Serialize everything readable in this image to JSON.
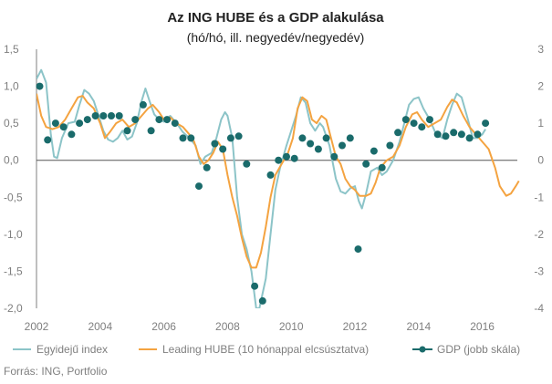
{
  "chart_data": {
    "type": "line",
    "title": "Az ING HUBE és a GDP alakulása",
    "subtitle": "(hó/hó, ill. negyedév/negyedév)",
    "source": "Forrás: ING, Portfolio",
    "x_ticks": [
      "2002",
      "2004",
      "2006",
      "2008",
      "2010",
      "2012",
      "2014",
      "2016"
    ],
    "y_left_ticks": [
      "1,5",
      "1,0",
      "0,5",
      "0,0",
      "-0,5",
      "-1,0",
      "-1,5",
      "-2,0"
    ],
    "y_right_ticks": [
      "3",
      "2",
      "1",
      "0",
      "-1",
      "-2",
      "-3",
      "-4"
    ],
    "ylim_left": [
      -2.0,
      1.5
    ],
    "ylim_right": [
      -4,
      3
    ],
    "xlim": [
      2002.0,
      2017.1
    ],
    "legend_position": "bottom",
    "colors": {
      "egyideju": "#8cc4c8",
      "leading": "#f4a340",
      "gdp": "#1a6b6b",
      "axis": "#7f7f7f",
      "zero": "#555555"
    },
    "series": [
      {
        "name": "Egyidejű index",
        "axis": "left",
        "points": [
          [
            2002.0,
            1.1
          ],
          [
            2002.15,
            1.22
          ],
          [
            2002.3,
            1.05
          ],
          [
            2002.45,
            0.35
          ],
          [
            2002.55,
            0.05
          ],
          [
            2002.65,
            0.03
          ],
          [
            2002.8,
            0.3
          ],
          [
            2003.0,
            0.5
          ],
          [
            2003.2,
            0.52
          ],
          [
            2003.35,
            0.75
          ],
          [
            2003.5,
            0.95
          ],
          [
            2003.65,
            0.9
          ],
          [
            2003.8,
            0.8
          ],
          [
            2003.95,
            0.6
          ],
          [
            2004.1,
            0.4
          ],
          [
            2004.25,
            0.28
          ],
          [
            2004.4,
            0.25
          ],
          [
            2004.55,
            0.3
          ],
          [
            2004.7,
            0.4
          ],
          [
            2004.85,
            0.28
          ],
          [
            2005.0,
            0.32
          ],
          [
            2005.15,
            0.5
          ],
          [
            2005.3,
            0.8
          ],
          [
            2005.42,
            0.97
          ],
          [
            2005.55,
            0.8
          ],
          [
            2005.7,
            0.62
          ],
          [
            2005.85,
            0.55
          ],
          [
            2006.0,
            0.52
          ],
          [
            2006.2,
            0.6
          ],
          [
            2006.4,
            0.5
          ],
          [
            2006.6,
            0.38
          ],
          [
            2006.8,
            0.3
          ],
          [
            2007.0,
            0.2
          ],
          [
            2007.15,
            -0.05
          ],
          [
            2007.3,
            0.05
          ],
          [
            2007.5,
            0.1
          ],
          [
            2007.65,
            0.3
          ],
          [
            2007.8,
            0.55
          ],
          [
            2007.92,
            0.65
          ],
          [
            2008.0,
            0.6
          ],
          [
            2008.15,
            0.3
          ],
          [
            2008.3,
            -0.5
          ],
          [
            2008.45,
            -1.0
          ],
          [
            2008.6,
            -1.2
          ],
          [
            2008.75,
            -1.5
          ],
          [
            2008.9,
            -2.0
          ],
          [
            2009.0,
            -2.0
          ],
          [
            2009.2,
            -1.6
          ],
          [
            2009.35,
            -1.0
          ],
          [
            2009.5,
            -0.4
          ],
          [
            2009.65,
            -0.1
          ],
          [
            2009.85,
            0.2
          ],
          [
            2010.0,
            0.4
          ],
          [
            2010.15,
            0.6
          ],
          [
            2010.3,
            0.85
          ],
          [
            2010.45,
            0.78
          ],
          [
            2010.6,
            0.5
          ],
          [
            2010.75,
            0.4
          ],
          [
            2010.9,
            0.5
          ],
          [
            2011.0,
            0.45
          ],
          [
            2011.2,
            0.2
          ],
          [
            2011.4,
            -0.25
          ],
          [
            2011.55,
            -0.42
          ],
          [
            2011.7,
            -0.45
          ],
          [
            2011.85,
            -0.38
          ],
          [
            2012.0,
            -0.35
          ],
          [
            2012.12,
            -0.55
          ],
          [
            2012.22,
            -0.65
          ],
          [
            2012.35,
            -0.45
          ],
          [
            2012.5,
            -0.15
          ],
          [
            2012.7,
            -0.1
          ],
          [
            2012.85,
            -0.2
          ],
          [
            2013.0,
            -0.15
          ],
          [
            2013.2,
            0.0
          ],
          [
            2013.4,
            0.25
          ],
          [
            2013.55,
            0.5
          ],
          [
            2013.7,
            0.75
          ],
          [
            2013.85,
            0.83
          ],
          [
            2014.0,
            0.85
          ],
          [
            2014.15,
            0.7
          ],
          [
            2014.35,
            0.55
          ],
          [
            2014.55,
            0.35
          ],
          [
            2014.75,
            0.3
          ],
          [
            2014.9,
            0.55
          ],
          [
            2015.05,
            0.75
          ],
          [
            2015.2,
            0.9
          ],
          [
            2015.35,
            0.85
          ],
          [
            2015.55,
            0.55
          ],
          [
            2015.7,
            0.3
          ],
          [
            2015.85,
            0.3
          ],
          [
            2016.0,
            0.35
          ],
          [
            2016.1,
            0.42
          ]
        ]
      },
      {
        "name": "Leading HUBE (10 hónappal elcsúsztatva)",
        "axis": "left",
        "points": [
          [
            2002.0,
            0.9
          ],
          [
            2002.15,
            0.6
          ],
          [
            2002.3,
            0.45
          ],
          [
            2002.5,
            0.42
          ],
          [
            2002.7,
            0.45
          ],
          [
            2002.9,
            0.55
          ],
          [
            2003.1,
            0.7
          ],
          [
            2003.3,
            0.85
          ],
          [
            2003.45,
            0.87
          ],
          [
            2003.6,
            0.78
          ],
          [
            2003.8,
            0.7
          ],
          [
            2004.0,
            0.5
          ],
          [
            2004.15,
            0.3
          ],
          [
            2004.3,
            0.38
          ],
          [
            2004.5,
            0.5
          ],
          [
            2004.7,
            0.55
          ],
          [
            2004.9,
            0.45
          ],
          [
            2005.1,
            0.5
          ],
          [
            2005.3,
            0.6
          ],
          [
            2005.5,
            0.7
          ],
          [
            2005.65,
            0.75
          ],
          [
            2005.85,
            0.65
          ],
          [
            2006.0,
            0.55
          ],
          [
            2006.2,
            0.58
          ],
          [
            2006.4,
            0.5
          ],
          [
            2006.6,
            0.45
          ],
          [
            2006.8,
            0.35
          ],
          [
            2006.95,
            0.25
          ],
          [
            2007.1,
            0.05
          ],
          [
            2007.25,
            -0.05
          ],
          [
            2007.4,
            0.0
          ],
          [
            2007.55,
            0.1
          ],
          [
            2007.7,
            0.25
          ],
          [
            2007.85,
            0.15
          ],
          [
            2008.0,
            -0.2
          ],
          [
            2008.15,
            -0.5
          ],
          [
            2008.3,
            -0.75
          ],
          [
            2008.45,
            -1.05
          ],
          [
            2008.6,
            -1.3
          ],
          [
            2008.75,
            -1.45
          ],
          [
            2008.9,
            -1.45
          ],
          [
            2009.05,
            -1.25
          ],
          [
            2009.2,
            -0.9
          ],
          [
            2009.35,
            -0.5
          ],
          [
            2009.5,
            -0.2
          ],
          [
            2009.7,
            -0.05
          ],
          [
            2009.9,
            0.1
          ],
          [
            2010.05,
            0.3
          ],
          [
            2010.2,
            0.7
          ],
          [
            2010.35,
            0.85
          ],
          [
            2010.5,
            0.8
          ],
          [
            2010.65,
            0.55
          ],
          [
            2010.8,
            0.5
          ],
          [
            2010.95,
            0.6
          ],
          [
            2011.1,
            0.55
          ],
          [
            2011.25,
            0.3
          ],
          [
            2011.4,
            0.05
          ],
          [
            2011.55,
            -0.05
          ],
          [
            2011.7,
            -0.25
          ],
          [
            2011.85,
            -0.35
          ],
          [
            2012.0,
            -0.4
          ],
          [
            2012.15,
            -0.48
          ],
          [
            2012.35,
            -0.48
          ],
          [
            2012.5,
            -0.45
          ],
          [
            2012.65,
            -0.3
          ],
          [
            2012.8,
            -0.1
          ],
          [
            2013.0,
            0.0
          ],
          [
            2013.2,
            0.05
          ],
          [
            2013.4,
            0.2
          ],
          [
            2013.6,
            0.45
          ],
          [
            2013.8,
            0.62
          ],
          [
            2013.95,
            0.65
          ],
          [
            2014.1,
            0.55
          ],
          [
            2014.3,
            0.45
          ],
          [
            2014.5,
            0.5
          ],
          [
            2014.7,
            0.55
          ],
          [
            2014.9,
            0.72
          ],
          [
            2015.05,
            0.82
          ],
          [
            2015.2,
            0.78
          ],
          [
            2015.4,
            0.6
          ],
          [
            2015.6,
            0.45
          ],
          [
            2015.8,
            0.35
          ],
          [
            2016.0,
            0.25
          ],
          [
            2016.2,
            0.15
          ],
          [
            2016.4,
            -0.1
          ],
          [
            2016.55,
            -0.35
          ],
          [
            2016.75,
            -0.48
          ],
          [
            2016.9,
            -0.45
          ],
          [
            2017.05,
            -0.35
          ],
          [
            2017.15,
            -0.28
          ]
        ]
      },
      {
        "name": "GDP (jobb skála)",
        "axis": "right",
        "points": [
          [
            2002.1,
            2.0
          ],
          [
            2002.35,
            0.55
          ],
          [
            2002.6,
            1.0
          ],
          [
            2002.85,
            0.9
          ],
          [
            2003.1,
            0.7
          ],
          [
            2003.35,
            1.0
          ],
          [
            2003.6,
            1.1
          ],
          [
            2003.85,
            1.2
          ],
          [
            2004.1,
            1.2
          ],
          [
            2004.35,
            1.2
          ],
          [
            2004.6,
            1.2
          ],
          [
            2004.85,
            0.8
          ],
          [
            2005.1,
            1.1
          ],
          [
            2005.35,
            1.5
          ],
          [
            2005.6,
            0.8
          ],
          [
            2005.85,
            1.1
          ],
          [
            2006.1,
            1.1
          ],
          [
            2006.35,
            1.0
          ],
          [
            2006.6,
            0.6
          ],
          [
            2006.85,
            0.6
          ],
          [
            2007.1,
            -0.7
          ],
          [
            2007.35,
            -0.2
          ],
          [
            2007.6,
            0.45
          ],
          [
            2007.85,
            0.3
          ],
          [
            2008.1,
            0.6
          ],
          [
            2008.35,
            0.65
          ],
          [
            2008.6,
            -0.1
          ],
          [
            2008.85,
            -3.4
          ],
          [
            2009.1,
            -3.8
          ],
          [
            2009.35,
            -0.4
          ],
          [
            2009.6,
            0.0
          ],
          [
            2009.85,
            0.1
          ],
          [
            2010.1,
            0.05
          ],
          [
            2010.35,
            0.6
          ],
          [
            2010.6,
            0.45
          ],
          [
            2010.85,
            0.3
          ],
          [
            2011.1,
            0.6
          ],
          [
            2011.35,
            0.1
          ],
          [
            2011.6,
            0.4
          ],
          [
            2011.85,
            0.6
          ],
          [
            2012.1,
            -2.4
          ],
          [
            2012.35,
            -0.1
          ],
          [
            2012.6,
            0.25
          ],
          [
            2012.85,
            -0.2
          ],
          [
            2013.1,
            0.4
          ],
          [
            2013.35,
            0.75
          ],
          [
            2013.6,
            1.1
          ],
          [
            2013.85,
            1.0
          ],
          [
            2014.1,
            0.9
          ],
          [
            2014.35,
            1.1
          ],
          [
            2014.6,
            0.7
          ],
          [
            2014.85,
            0.65
          ],
          [
            2015.1,
            0.75
          ],
          [
            2015.35,
            0.7
          ],
          [
            2015.6,
            0.6
          ],
          [
            2015.85,
            0.7
          ],
          [
            2016.1,
            1.0
          ]
        ]
      }
    ]
  }
}
